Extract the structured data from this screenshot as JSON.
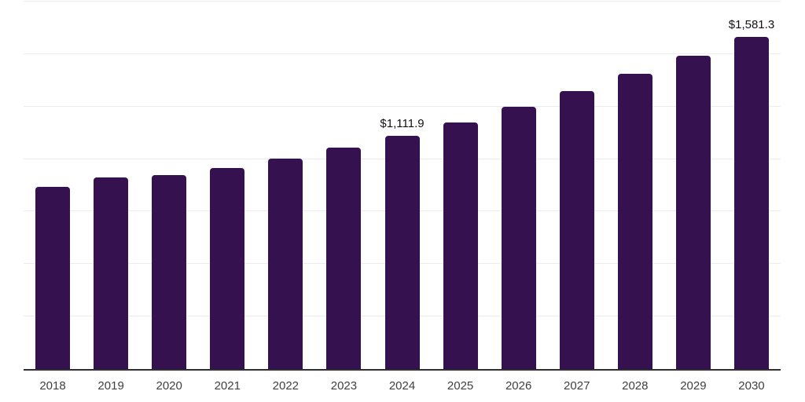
{
  "chart_data": {
    "type": "bar",
    "title": "",
    "xlabel": "",
    "ylabel": "",
    "categories": [
      "2018",
      "2019",
      "2020",
      "2021",
      "2022",
      "2023",
      "2024",
      "2025",
      "2026",
      "2027",
      "2028",
      "2029",
      "2030"
    ],
    "values": [
      868,
      911,
      924,
      958,
      1003,
      1054,
      1111.9,
      1176,
      1249,
      1322,
      1407,
      1492,
      1581.3
    ],
    "data_labels": {
      "2024": "$1,111.9",
      "2030": "$1,581.3"
    },
    "ylim": [
      0,
      1750
    ],
    "gridline_step": 250,
    "grid": "horizontal-only",
    "legend": "none",
    "y_tick_labels": "none",
    "bar_color": "#361150",
    "gridline_color": "#ececec",
    "axis_line_color": "#2f2f2f",
    "x_tick_label_color": "#404040",
    "data_label_color": "#121212",
    "background_color": "#ffffff"
  }
}
